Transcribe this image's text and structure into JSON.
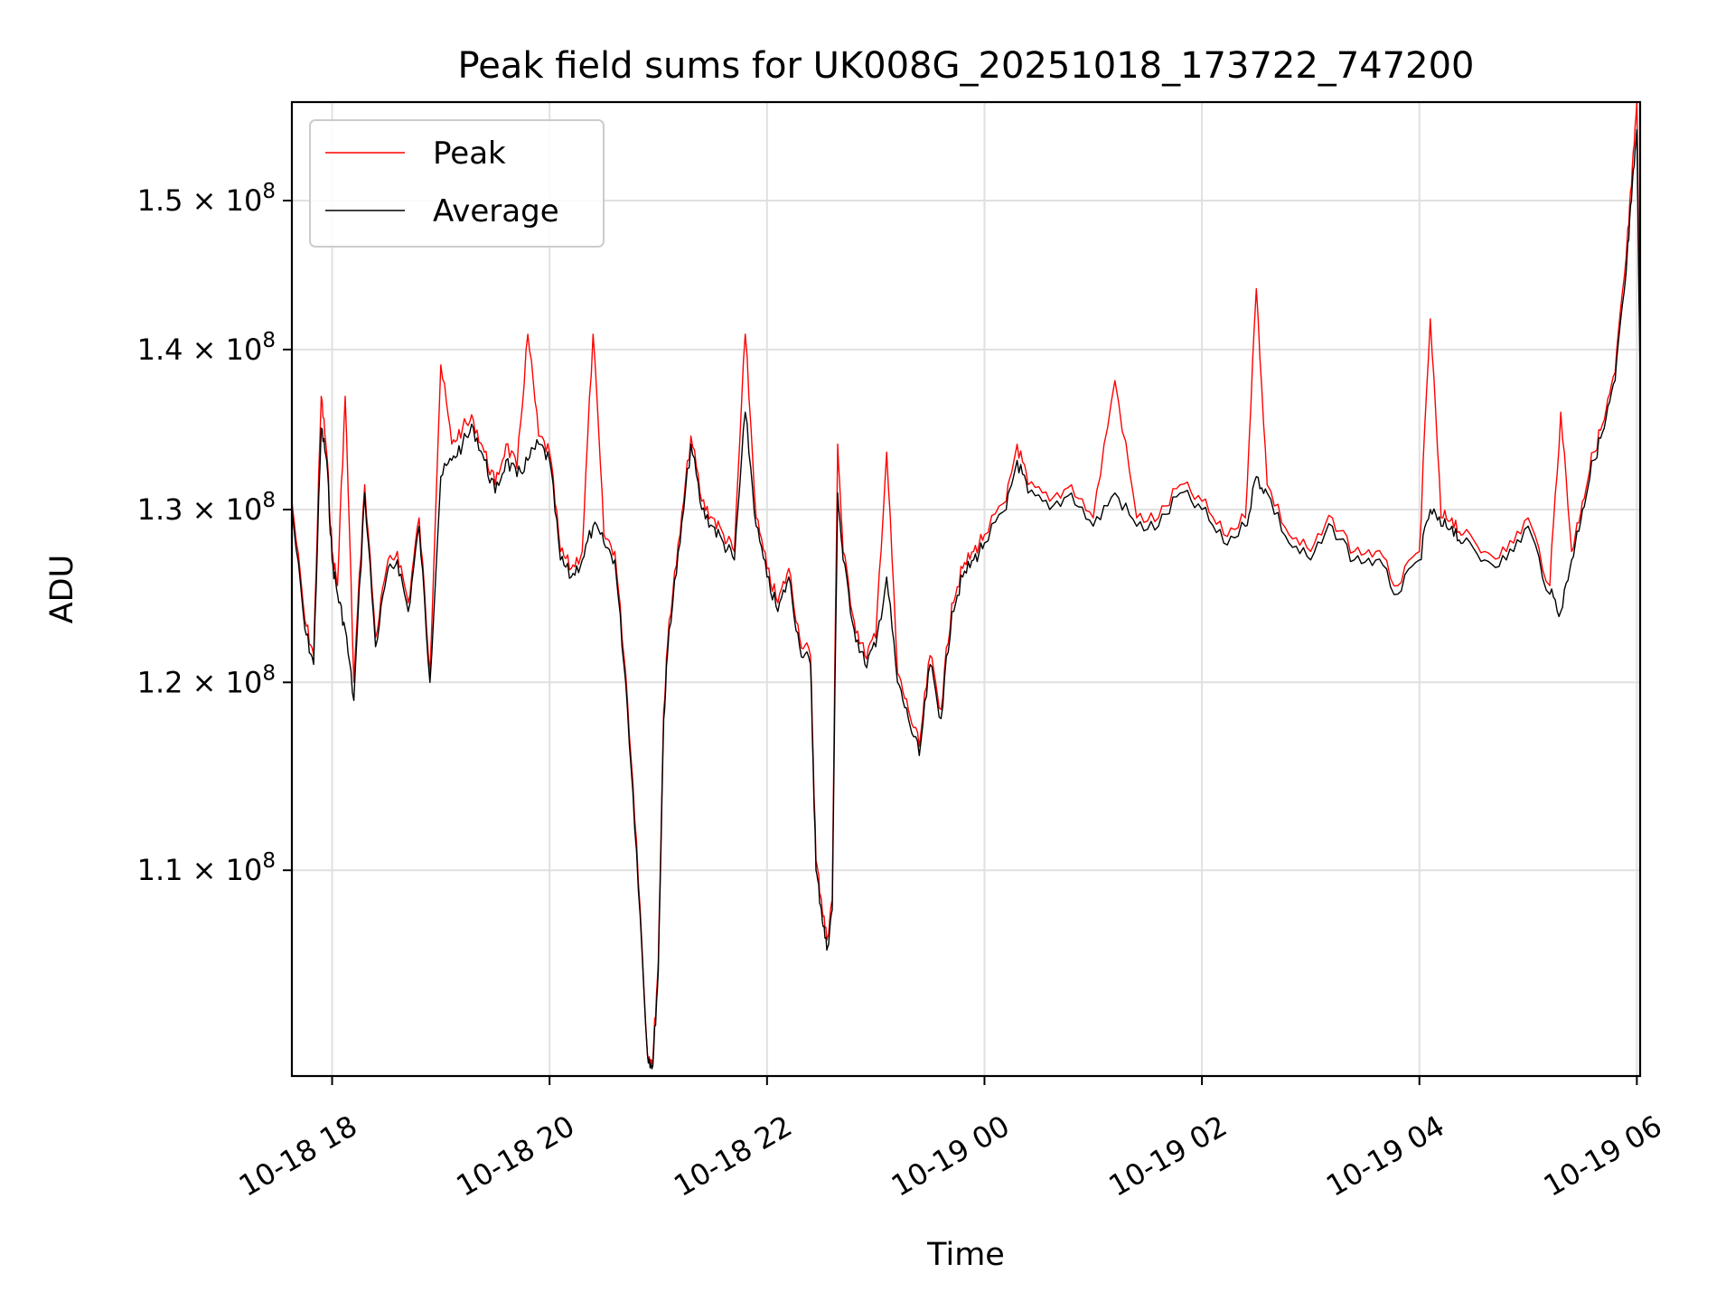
{
  "chart_data": {
    "type": "line",
    "title": "Peak field sums for UK008G_20251018_173722_747200",
    "xlabel": "Time",
    "ylabel": "ADU",
    "y_scale": "log",
    "ylim": [
      100000000,
      157000000
    ],
    "xlim_hours": [
      17.63,
      30.03
    ],
    "x_tick_values_hours": [
      18,
      20,
      22,
      24,
      26,
      28,
      30
    ],
    "x_tick_labels": [
      "10-18 18",
      "10-18 20",
      "10-18 22",
      "10-19 00",
      "10-19 02",
      "10-19 04",
      "10-19 06"
    ],
    "y_tick_values": [
      110000000,
      120000000,
      130000000,
      140000000,
      150000000
    ],
    "y_tick_labels": [
      {
        "mantissa": "1.1",
        "exp": "8"
      },
      {
        "mantissa": "1.2",
        "exp": "8"
      },
      {
        "mantissa": "1.3",
        "exp": "8"
      },
      {
        "mantissa": "1.4",
        "exp": "8"
      },
      {
        "mantissa": "1.5",
        "exp": "8"
      }
    ],
    "times_label": "10^8",
    "times_sign": "×",
    "grid": true,
    "legend": {
      "position": "top-left",
      "entries": [
        "Peak",
        "Average"
      ]
    },
    "colors": {
      "peak": "#ff0000",
      "average": "#000000",
      "grid": "#e0e0e0"
    },
    "series": [
      {
        "name": "Average",
        "x_hours": [
          17.63,
          17.75,
          17.83,
          17.9,
          17.95,
          18.0,
          18.05,
          18.12,
          18.2,
          18.3,
          18.4,
          18.5,
          18.6,
          18.7,
          18.8,
          18.9,
          19.0,
          19.1,
          19.2,
          19.3,
          19.4,
          19.5,
          19.6,
          19.7,
          19.8,
          19.9,
          20.0,
          20.1,
          20.2,
          20.3,
          20.4,
          20.5,
          20.6,
          20.7,
          20.8,
          20.9,
          20.95,
          21.0,
          21.05,
          21.1,
          21.2,
          21.3,
          21.4,
          21.5,
          21.6,
          21.7,
          21.8,
          21.9,
          22.0,
          22.1,
          22.2,
          22.3,
          22.4,
          22.45,
          22.5,
          22.55,
          22.6,
          22.65,
          22.7,
          22.8,
          22.9,
          23.0,
          23.1,
          23.2,
          23.3,
          23.4,
          23.5,
          23.6,
          23.7,
          23.8,
          23.9,
          24.0,
          24.2,
          24.3,
          24.4,
          24.6,
          24.8,
          25.0,
          25.2,
          25.4,
          25.6,
          25.8,
          26.0,
          26.2,
          26.4,
          26.5,
          26.6,
          26.8,
          27.0,
          27.2,
          27.4,
          27.6,
          27.8,
          28.0,
          28.1,
          28.2,
          28.3,
          28.4,
          28.6,
          28.8,
          29.0,
          29.2,
          29.3,
          29.4,
          29.5,
          29.6,
          29.7,
          29.8,
          29.9,
          29.95,
          30.0,
          30.03
        ],
        "values": [
          130000000.0,
          123000000.0,
          121000000.0,
          135000000.0,
          133000000.0,
          127000000.0,
          125000000.0,
          123000000.0,
          119000000.0,
          131000000.0,
          122000000.0,
          126000000.0,
          127000000.0,
          124000000.0,
          129000000.0,
          120000000.0,
          132000000.0,
          133000000.0,
          134000000.0,
          135000000.0,
          133000000.0,
          131000000.0,
          133000000.0,
          132000000.0,
          133000000.0,
          134000000.0,
          133000000.0,
          127000000.0,
          126000000.0,
          127000000.0,
          129000000.0,
          128000000.0,
          127000000.0,
          120000000.0,
          111000000.0,
          101000000.0,
          100500000.0,
          105000000.0,
          118000000.0,
          123000000.0,
          128000000.0,
          134000000.0,
          130000000.0,
          129000000.0,
          128000000.0,
          127000000.0,
          136000000.0,
          129000000.0,
          126000000.0,
          124000000.0,
          126000000.0,
          122000000.0,
          121000000.0,
          110000000.0,
          108000000.0,
          106000000.0,
          108000000.0,
          131000000.0,
          127000000.0,
          123000000.0,
          121000000.0,
          122000000.0,
          126000000.0,
          120000000.0,
          118000000.0,
          116000000.0,
          121000000.0,
          118000000.0,
          124000000.0,
          126000000.0,
          127000000.0,
          128000000.0,
          130000000.0,
          133000000.0,
          131000000.0,
          130000000.0,
          131000000.0,
          129000000.0,
          131000000.0,
          129000000.0,
          129000000.0,
          131000000.0,
          130000000.0,
          128000000.0,
          129000000.0,
          132000000.0,
          131000000.0,
          128000000.0,
          127000000.0,
          129000000.0,
          127000000.0,
          127000000.0,
          125000000.0,
          127000000.0,
          130000000.0,
          129000000.0,
          129000000.0,
          128000000.0,
          127000000.0,
          127000000.0,
          129000000.0,
          125000000.0,
          124000000.0,
          127000000.0,
          130000000.0,
          133000000.0,
          135000000.0,
          138000000.0,
          145000000.0,
          150000000.0,
          155000000.0,
          138000000.0
        ]
      },
      {
        "name": "Peak",
        "x_hours": [
          17.63,
          17.75,
          17.83,
          17.9,
          17.95,
          18.0,
          18.05,
          18.12,
          18.2,
          18.3,
          18.4,
          18.5,
          18.6,
          18.7,
          18.8,
          18.9,
          19.0,
          19.1,
          19.2,
          19.3,
          19.4,
          19.5,
          19.6,
          19.7,
          19.8,
          19.9,
          20.0,
          20.1,
          20.2,
          20.3,
          20.4,
          20.5,
          20.6,
          20.7,
          20.8,
          20.9,
          20.95,
          21.0,
          21.05,
          21.1,
          21.2,
          21.3,
          21.4,
          21.5,
          21.6,
          21.7,
          21.8,
          21.9,
          22.0,
          22.1,
          22.2,
          22.3,
          22.4,
          22.45,
          22.5,
          22.55,
          22.6,
          22.65,
          22.7,
          22.8,
          22.9,
          23.0,
          23.1,
          23.2,
          23.3,
          23.4,
          23.5,
          23.6,
          23.7,
          23.8,
          23.9,
          24.0,
          24.2,
          24.3,
          24.4,
          24.6,
          24.8,
          25.0,
          25.2,
          25.4,
          25.6,
          25.8,
          26.0,
          26.2,
          26.4,
          26.5,
          26.6,
          26.8,
          27.0,
          27.2,
          27.4,
          27.6,
          27.8,
          28.0,
          28.1,
          28.2,
          28.3,
          28.4,
          28.6,
          28.8,
          29.0,
          29.2,
          29.3,
          29.4,
          29.5,
          29.6,
          29.7,
          29.8,
          29.9,
          29.95,
          30.0,
          30.03
        ],
        "values": [
          130500000.0,
          123500000.0,
          121500000.0,
          137000000.0,
          133500000.0,
          127500000.0,
          125500000.0,
          137000000.0,
          120000000.0,
          131500000.0,
          122500000.0,
          126500000.0,
          127500000.0,
          124500000.0,
          129500000.0,
          120500000.0,
          139000000.0,
          134000000.0,
          135000000.0,
          135500000.0,
          133500000.0,
          131500000.0,
          134000000.0,
          132500000.0,
          141000000.0,
          134500000.0,
          133500000.0,
          127500000.0,
          126500000.0,
          127500000.0,
          141000000.0,
          128500000.0,
          127500000.0,
          120500000.0,
          111500000.0,
          101000000.0,
          100800000.0,
          105500000.0,
          118500000.0,
          123500000.0,
          128500000.0,
          134500000.0,
          130500000.0,
          129500000.0,
          128500000.0,
          127500000.0,
          141000000.0,
          129500000.0,
          126500000.0,
          124500000.0,
          126500000.0,
          122500000.0,
          121500000.0,
          110500000.0,
          108500000.0,
          106500000.0,
          108500000.0,
          134000000.0,
          127500000.0,
          123500000.0,
          121500000.0,
          122500000.0,
          133500000.0,
          120500000.0,
          118500000.0,
          116500000.0,
          121500000.0,
          118500000.0,
          124500000.0,
          126500000.0,
          127500000.0,
          128500000.0,
          130500000.0,
          134000000.0,
          131500000.0,
          130500000.0,
          131500000.0,
          129500000.0,
          138000000.0,
          129500000.0,
          129500000.0,
          131500000.0,
          130500000.0,
          128500000.0,
          129500000.0,
          144000000.0,
          131500000.0,
          128500000.0,
          127500000.0,
          129500000.0,
          127500000.0,
          127500000.0,
          125500000.0,
          127500000.0,
          142000000.0,
          129500000.0,
          129500000.0,
          128500000.0,
          127500000.0,
          127500000.0,
          129500000.0,
          125500000.0,
          136000000.0,
          127500000.0,
          130500000.0,
          133500000.0,
          135500000.0,
          138500000.0,
          146000000.0,
          151000000.0,
          157000000.0,
          138500000.0
        ]
      }
    ]
  }
}
